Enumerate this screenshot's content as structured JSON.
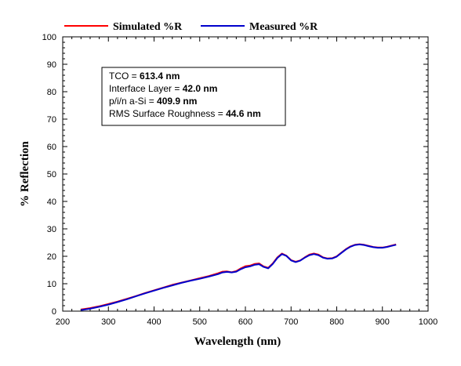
{
  "chart_data": {
    "type": "line",
    "title": "",
    "xlabel": "Wavelength (nm)",
    "ylabel": "% Reflection",
    "xlim": [
      200,
      1000
    ],
    "ylim": [
      0,
      100
    ],
    "xticks": [
      200,
      300,
      400,
      500,
      600,
      700,
      800,
      900,
      1000
    ],
    "yticks": [
      0,
      10,
      20,
      30,
      40,
      50,
      60,
      70,
      80,
      90,
      100
    ],
    "grid": false,
    "legend_position": "top-center",
    "series": [
      {
        "name": "Simulated %R",
        "color": "#ff0000",
        "x": [
          240,
          260,
          280,
          300,
          320,
          340,
          360,
          380,
          400,
          420,
          440,
          460,
          480,
          500,
          520,
          540,
          550,
          560,
          570,
          580,
          590,
          600,
          610,
          620,
          630,
          640,
          650,
          660,
          670,
          680,
          690,
          700,
          710,
          720,
          730,
          740,
          750,
          760,
          770,
          780,
          790,
          800,
          810,
          820,
          830,
          840,
          850,
          860,
          870,
          880,
          890,
          900,
          910,
          920,
          930
        ],
        "y": [
          0.6,
          1.1,
          1.8,
          2.6,
          3.5,
          4.5,
          5.5,
          6.6,
          7.6,
          8.6,
          9.6,
          10.4,
          11.2,
          12.0,
          12.8,
          13.8,
          14.4,
          14.5,
          14.2,
          14.6,
          15.6,
          16.4,
          16.6,
          17.2,
          17.4,
          16.3,
          15.8,
          17.4,
          19.6,
          21.0,
          20.2,
          18.6,
          18.0,
          18.5,
          19.6,
          20.6,
          21.0,
          20.6,
          19.6,
          19.2,
          19.3,
          20.0,
          21.3,
          22.6,
          23.6,
          24.2,
          24.4,
          24.2,
          23.8,
          23.4,
          23.2,
          23.2,
          23.5,
          23.9,
          24.3
        ]
      },
      {
        "name": "Measured %R",
        "color": "#0000cc",
        "x": [
          240,
          260,
          280,
          300,
          320,
          340,
          360,
          380,
          400,
          420,
          440,
          460,
          480,
          500,
          520,
          540,
          550,
          560,
          570,
          580,
          590,
          600,
          610,
          620,
          630,
          640,
          650,
          660,
          670,
          680,
          690,
          700,
          710,
          720,
          730,
          740,
          750,
          760,
          770,
          780,
          790,
          800,
          810,
          820,
          830,
          840,
          850,
          860,
          870,
          880,
          890,
          900,
          910,
          920,
          930
        ],
        "y": [
          0.4,
          0.9,
          1.6,
          2.4,
          3.3,
          4.3,
          5.4,
          6.5,
          7.5,
          8.5,
          9.4,
          10.3,
          11.1,
          11.8,
          12.6,
          13.5,
          14.1,
          14.3,
          14.1,
          14.4,
          15.3,
          16.0,
          16.3,
          16.9,
          17.1,
          16.1,
          15.6,
          17.2,
          19.4,
          20.8,
          20.1,
          18.5,
          17.9,
          18.4,
          19.5,
          20.4,
          20.8,
          20.4,
          19.5,
          19.1,
          19.2,
          19.9,
          21.2,
          22.5,
          23.5,
          24.1,
          24.3,
          24.1,
          23.7,
          23.3,
          23.1,
          23.1,
          23.4,
          23.8,
          24.2
        ]
      }
    ],
    "annotation": {
      "lines": [
        {
          "label": "TCO = ",
          "value": "613.4 nm"
        },
        {
          "label": "Interface Layer = ",
          "value": "42.0 nm"
        },
        {
          "label": "p/i/n a-Si = ",
          "value": "409.9 nm"
        },
        {
          "label": "RMS Surface Roughness = ",
          "value": "44.6 nm"
        }
      ]
    }
  }
}
